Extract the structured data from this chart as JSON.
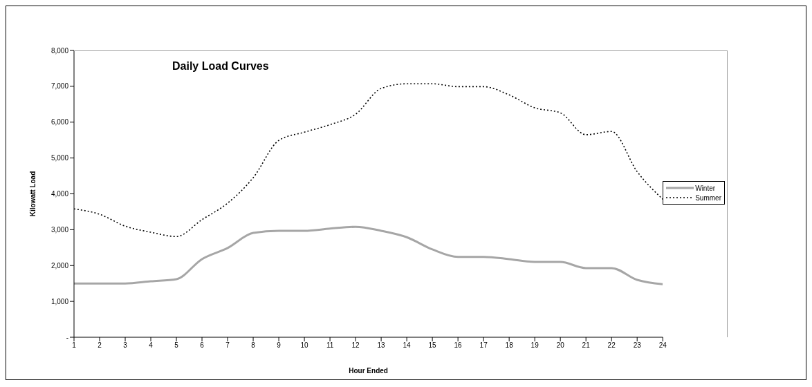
{
  "chart_data": {
    "type": "line",
    "title": "Daily Load Curves",
    "xlabel": "Hour Ended",
    "ylabel": "Kilowatt Load",
    "x": [
      1,
      2,
      3,
      4,
      5,
      6,
      7,
      8,
      9,
      10,
      11,
      12,
      13,
      14,
      15,
      16,
      17,
      18,
      19,
      20,
      21,
      22,
      23,
      24
    ],
    "series": [
      {
        "name": "Winter",
        "color": "#a6a6a6",
        "line_style": "solid",
        "values": [
          1500,
          1500,
          1500,
          1560,
          1620,
          2180,
          2490,
          2910,
          2970,
          2970,
          3030,
          3080,
          2970,
          2790,
          2450,
          2240,
          2240,
          2180,
          2100,
          2100,
          1930,
          1930,
          1600,
          1480
        ]
      },
      {
        "name": "Summer",
        "color": "#000000",
        "line_style": "dotted",
        "values": [
          3580,
          3430,
          3100,
          2930,
          2810,
          3280,
          3740,
          4450,
          5490,
          5720,
          5930,
          6220,
          6940,
          7070,
          7070,
          6990,
          6990,
          6760,
          6400,
          6260,
          5650,
          5740,
          4620,
          3850
        ]
      }
    ],
    "xlim": [
      1,
      24
    ],
    "xticks": [
      1,
      2,
      3,
      4,
      5,
      6,
      7,
      8,
      9,
      10,
      11,
      12,
      13,
      14,
      15,
      16,
      17,
      18,
      19,
      20,
      21,
      22,
      23,
      24
    ],
    "ylim": [
      0,
      8000
    ],
    "yticks": [
      {
        "value": 0,
        "label": "-"
      },
      {
        "value": 1000,
        "label": "1,000"
      },
      {
        "value": 2000,
        "label": "2,000"
      },
      {
        "value": 3000,
        "label": "3,000"
      },
      {
        "value": 4000,
        "label": "4,000"
      },
      {
        "value": 5000,
        "label": "5,000"
      },
      {
        "value": 6000,
        "label": "6,000"
      },
      {
        "value": 7000,
        "label": "7,000"
      },
      {
        "value": 8000,
        "label": "8,000"
      }
    ],
    "grid": false,
    "legend": "right",
    "marker": "none"
  }
}
